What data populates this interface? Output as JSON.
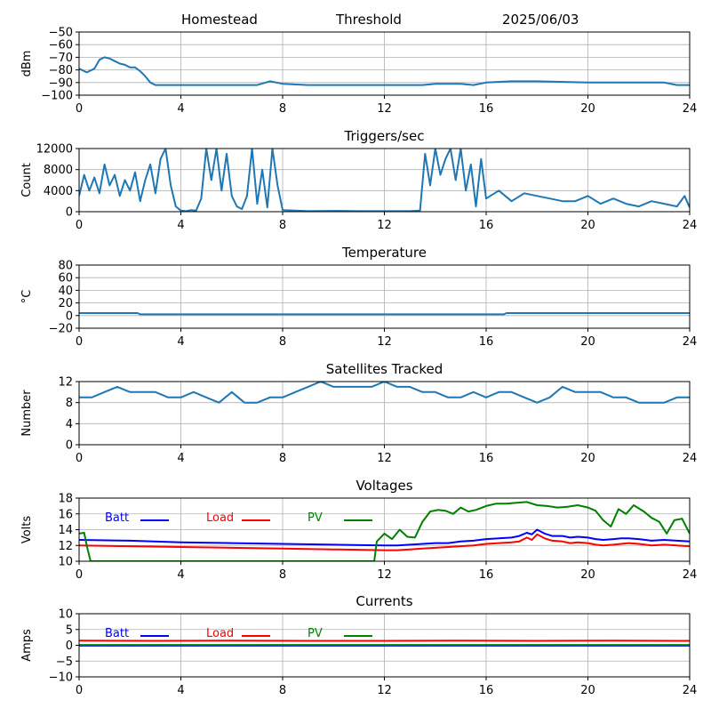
{
  "header": {
    "site": "Homestead",
    "mode": "Threshold",
    "date": "2025/06/03"
  },
  "colors": {
    "series": "#1f77b4",
    "grid": "#b0b0b0",
    "batt": "#0000ff",
    "load": "#ff0000",
    "pv": "#008000"
  },
  "chart_data": [
    {
      "type": "line",
      "title": "",
      "xlabel": "",
      "ylabel": "dBm",
      "xlim": [
        0,
        24
      ],
      "ylim": [
        -100,
        -50
      ],
      "grid": true,
      "xticks": [
        "0",
        "4",
        "8",
        "12",
        "16",
        "20",
        "24"
      ],
      "yticks": [
        "−50",
        "−60",
        "−70",
        "−80",
        "−90",
        "−100"
      ],
      "series": [
        {
          "x": [
            0,
            0.3,
            0.6,
            0.8,
            1,
            1.2,
            1.4,
            1.6,
            1.8,
            2,
            2.2,
            2.4,
            2.6,
            2.8,
            3,
            4,
            5,
            6,
            7,
            7.5,
            8,
            9,
            12,
            13.5,
            14,
            15,
            15.5,
            16,
            17,
            18,
            20,
            21,
            22,
            23,
            23.5,
            24
          ],
          "y": [
            -79,
            -82,
            -79,
            -72,
            -70,
            -71,
            -73,
            -75,
            -76,
            -78,
            -78,
            -81,
            -85,
            -90,
            -92,
            -92,
            -92,
            -92,
            -92,
            -89,
            -91,
            -92,
            -92,
            -92,
            -91,
            -91,
            -92,
            -90,
            -89,
            -89,
            -90,
            -90,
            -90,
            -90,
            -92,
            -92
          ]
        }
      ]
    },
    {
      "type": "line",
      "title": "Triggers/sec",
      "xlabel": "",
      "ylabel": "Count",
      "xlim": [
        0,
        24
      ],
      "ylim": [
        0,
        12000
      ],
      "grid": true,
      "xticks": [
        "0",
        "4",
        "8",
        "12",
        "16",
        "20",
        "24"
      ],
      "yticks": [
        "0",
        "4000",
        "8000",
        "12000"
      ],
      "series": [
        {
          "x": [
            0,
            0.2,
            0.4,
            0.6,
            0.8,
            1,
            1.2,
            1.4,
            1.6,
            1.8,
            2,
            2.2,
            2.4,
            2.6,
            2.8,
            3,
            3.2,
            3.4,
            3.6,
            3.8,
            4,
            4.2,
            4.4,
            4.6,
            4.8,
            5,
            5.2,
            5.4,
            5.6,
            5.8,
            6,
            6.2,
            6.4,
            6.6,
            6.8,
            7,
            7.2,
            7.4,
            7.6,
            7.8,
            8,
            8.5,
            9,
            10,
            11,
            12,
            13,
            13.4,
            13.6,
            13.8,
            14,
            14.2,
            14.4,
            14.6,
            14.8,
            15,
            15.2,
            15.4,
            15.6,
            15.8,
            16,
            16.5,
            17,
            17.5,
            18,
            18.5,
            19,
            19.5,
            20,
            20.5,
            21,
            21.5,
            22,
            22.5,
            23,
            23.5,
            23.8,
            24
          ],
          "y": [
            3000,
            7000,
            4000,
            6500,
            3500,
            9000,
            5000,
            7000,
            3000,
            6000,
            4000,
            7500,
            2000,
            6000,
            9000,
            3500,
            10000,
            12000,
            5000,
            1000,
            200,
            100,
            300,
            200,
            2500,
            12000,
            6000,
            12000,
            4000,
            11000,
            3000,
            1000,
            500,
            3000,
            12000,
            1500,
            8000,
            800,
            12000,
            5000,
            300,
            200,
            100,
            150,
            100,
            100,
            100,
            200,
            11000,
            5000,
            12000,
            7000,
            10000,
            12000,
            6000,
            12000,
            4000,
            9000,
            1000,
            10000,
            2500,
            4000,
            2000,
            3500,
            3000,
            2500,
            2000,
            2000,
            3000,
            1500,
            2500,
            1500,
            1000,
            2000,
            1500,
            1000,
            3000,
            800
          ]
        }
      ]
    },
    {
      "type": "line",
      "title": "Temperature",
      "xlabel": "",
      "ylabel": "°C",
      "xlim": [
        0,
        24
      ],
      "ylim": [
        -20,
        80
      ],
      "grid": true,
      "xticks": [
        "0",
        "4",
        "8",
        "12",
        "16",
        "20",
        "24"
      ],
      "yticks": [
        "−20",
        "0",
        "20",
        "40",
        "60",
        "80"
      ],
      "series": [
        {
          "x": [
            0,
            2.3,
            2.4,
            16.7,
            16.8,
            24
          ],
          "y": [
            4,
            4,
            2,
            2,
            4,
            4
          ]
        }
      ]
    },
    {
      "type": "line",
      "title": "Satellites Tracked",
      "xlabel": "",
      "ylabel": "Number",
      "xlim": [
        0,
        24
      ],
      "ylim": [
        0,
        12
      ],
      "grid": true,
      "xticks": [
        "0",
        "4",
        "8",
        "12",
        "16",
        "20",
        "24"
      ],
      "yticks": [
        "0",
        "4",
        "8",
        "12"
      ],
      "series": [
        {
          "x": [
            0,
            0.5,
            1,
            1.5,
            2,
            2.5,
            3,
            3.5,
            4,
            4.5,
            5,
            5.5,
            6,
            6.5,
            7,
            7.5,
            8,
            8.5,
            9,
            9.5,
            10,
            10.5,
            11,
            11.5,
            12,
            12.5,
            13,
            13.5,
            14,
            14.5,
            15,
            15.5,
            16,
            16.5,
            17,
            17.5,
            18,
            18.5,
            19,
            19.5,
            20,
            20.5,
            21,
            21.5,
            22,
            22.5,
            23,
            23.5,
            24
          ],
          "y": [
            9,
            9,
            10,
            11,
            10,
            10,
            10,
            9,
            9,
            10,
            9,
            8,
            10,
            8,
            8,
            9,
            9,
            10,
            11,
            12,
            11,
            11,
            11,
            11,
            12,
            11,
            11,
            10,
            10,
            9,
            9,
            10,
            9,
            10,
            10,
            9,
            8,
            9,
            11,
            10,
            10,
            10,
            9,
            9,
            8,
            8,
            8,
            9,
            9
          ]
        }
      ]
    },
    {
      "type": "line",
      "title": "Voltages",
      "xlabel": "",
      "ylabel": "Volts",
      "xlim": [
        0,
        24
      ],
      "ylim": [
        10,
        18
      ],
      "grid": true,
      "xticks": [
        "0",
        "4",
        "8",
        "12",
        "16",
        "20",
        "24"
      ],
      "yticks": [
        "10",
        "12",
        "14",
        "16",
        "18"
      ],
      "legend": [
        "Batt",
        "Load",
        "PV"
      ],
      "series": [
        {
          "name": "Batt",
          "x": [
            0,
            2,
            4,
            6,
            8,
            10,
            12,
            12.5,
            13,
            13.5,
            14,
            14.5,
            15,
            15.5,
            16,
            16.5,
            17,
            17.3,
            17.6,
            17.8,
            18,
            18.3,
            18.6,
            19,
            19.3,
            19.6,
            20,
            20.3,
            20.6,
            21,
            21.3,
            21.6,
            22,
            22.5,
            23,
            23.5,
            24
          ],
          "y": [
            12.7,
            12.6,
            12.4,
            12.3,
            12.2,
            12.1,
            12.0,
            12.0,
            12.1,
            12.2,
            12.3,
            12.3,
            12.5,
            12.6,
            12.8,
            12.9,
            13.0,
            13.2,
            13.6,
            13.4,
            14.0,
            13.5,
            13.2,
            13.2,
            13.0,
            13.1,
            13.0,
            12.8,
            12.7,
            12.8,
            12.9,
            12.9,
            12.8,
            12.6,
            12.7,
            12.6,
            12.5
          ]
        },
        {
          "name": "Load",
          "x": [
            0,
            2,
            4,
            6,
            8,
            10,
            12,
            12.5,
            13,
            13.5,
            14,
            14.5,
            15,
            15.5,
            16,
            16.5,
            17,
            17.3,
            17.6,
            17.8,
            18,
            18.3,
            18.6,
            19,
            19.3,
            19.6,
            20,
            20.3,
            20.6,
            21,
            21.3,
            21.6,
            22,
            22.5,
            23,
            23.5,
            24
          ],
          "y": [
            12.0,
            11.9,
            11.8,
            11.7,
            11.6,
            11.5,
            11.4,
            11.4,
            11.5,
            11.6,
            11.7,
            11.8,
            11.9,
            12.0,
            12.2,
            12.3,
            12.4,
            12.5,
            13.0,
            12.7,
            13.4,
            12.9,
            12.6,
            12.5,
            12.3,
            12.4,
            12.3,
            12.1,
            12.0,
            12.1,
            12.2,
            12.3,
            12.2,
            12.0,
            12.1,
            12.0,
            11.9
          ]
        },
        {
          "name": "PV",
          "x": [
            0,
            0.2,
            0.3,
            0.45,
            11.6,
            11.7,
            12,
            12.3,
            12.6,
            12.9,
            13.2,
            13.5,
            13.8,
            14.1,
            14.4,
            14.7,
            15,
            15.3,
            15.6,
            16,
            16.4,
            16.8,
            17.2,
            17.6,
            18,
            18.4,
            18.8,
            19.2,
            19.6,
            20,
            20.3,
            20.6,
            20.9,
            21.2,
            21.5,
            21.8,
            22.2,
            22.5,
            22.8,
            23.1,
            23.4,
            23.7,
            24
          ],
          "y": [
            13.5,
            13.6,
            12,
            10,
            10,
            12.5,
            13.5,
            12.8,
            14.0,
            13.1,
            13.0,
            15.0,
            16.3,
            16.5,
            16.4,
            16.0,
            16.8,
            16.3,
            16.5,
            17.0,
            17.3,
            17.3,
            17.4,
            17.5,
            17.1,
            17.0,
            16.8,
            16.9,
            17.1,
            16.8,
            16.4,
            15.2,
            14.4,
            16.6,
            16.0,
            17.1,
            16.3,
            15.5,
            15.0,
            13.5,
            15.2,
            15.4,
            13.5
          ]
        }
      ]
    },
    {
      "type": "line",
      "title": "Currents",
      "xlabel": "",
      "ylabel": "Amps",
      "xlim": [
        0,
        24
      ],
      "ylim": [
        -10,
        10
      ],
      "grid": true,
      "xticks": [
        "0",
        "4",
        "8",
        "12",
        "16",
        "20",
        "24"
      ],
      "yticks": [
        "−10",
        "−5",
        "0",
        "5",
        "10"
      ],
      "legend": [
        "Batt",
        "Load",
        "PV"
      ],
      "series": [
        {
          "name": "Batt",
          "x": [
            0,
            24
          ],
          "y": [
            -0.1,
            -0.1
          ]
        },
        {
          "name": "Load",
          "x": [
            0,
            3,
            6,
            9,
            12,
            15,
            18,
            21,
            24
          ],
          "y": [
            1.5,
            1.4,
            1.5,
            1.4,
            1.4,
            1.5,
            1.4,
            1.5,
            1.4
          ]
        },
        {
          "name": "PV",
          "x": [
            0,
            24
          ],
          "y": [
            0.1,
            0.1
          ]
        }
      ]
    }
  ]
}
